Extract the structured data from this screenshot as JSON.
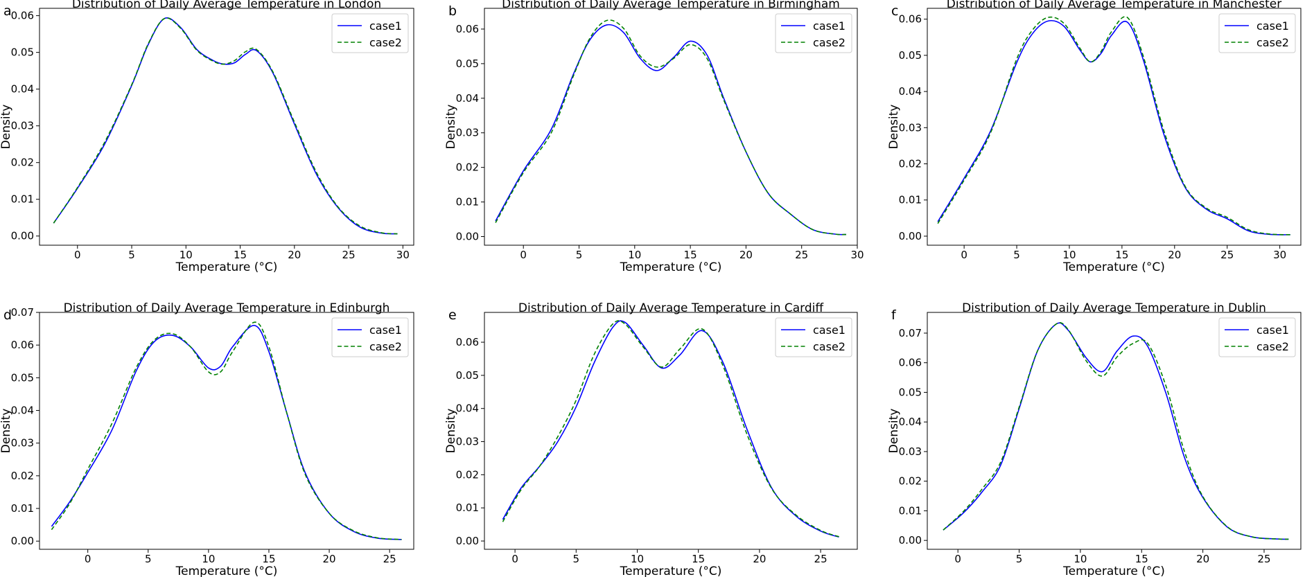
{
  "figure": {
    "legend_labels": [
      "case1",
      "case2"
    ],
    "series_colors": {
      "case1": "#0000ff",
      "case2": "#008000"
    }
  },
  "chart_data": [
    {
      "type": "line",
      "panel_label": "a",
      "title": "Distribution of Daily Average Temperature in London",
      "xlabel": "Temperature (°C)",
      "ylabel": "Density",
      "xlim": [
        -3.5,
        31
      ],
      "ylim": [
        -0.0025,
        0.062
      ],
      "xticks": [
        0,
        5,
        10,
        15,
        20,
        25,
        30
      ],
      "xtick_labels": [
        "0",
        "5",
        "10",
        "15",
        "20",
        "25",
        "30"
      ],
      "yticks": [
        0,
        0.01,
        0.02,
        0.03,
        0.04,
        0.05,
        0.06
      ],
      "ytick_labels": [
        "0.00",
        "0.01",
        "0.02",
        "0.03",
        "0.04",
        "0.05",
        "0.06"
      ],
      "legend_position": "top-right",
      "series": [
        {
          "name": "case1",
          "style": "solid",
          "x": [
            -2.2,
            0,
            2.5,
            5,
            6.5,
            8,
            9.5,
            11,
            12.5,
            13.5,
            14.5,
            15.5,
            16.5,
            18,
            20,
            22,
            24,
            26,
            28,
            29.5
          ],
          "y": [
            0.0035,
            0.013,
            0.025,
            0.041,
            0.052,
            0.0592,
            0.0568,
            0.0508,
            0.0478,
            0.0468,
            0.0472,
            0.0495,
            0.0505,
            0.0445,
            0.0305,
            0.017,
            0.0078,
            0.0025,
            0.0008,
            0.0006
          ]
        },
        {
          "name": "case2",
          "style": "dashed",
          "x": [
            -2.2,
            0,
            2.5,
            5,
            6.5,
            8,
            9.5,
            11,
            12.5,
            13.5,
            14.5,
            15.5,
            16.5,
            18,
            20,
            22,
            24,
            26,
            28,
            29.5
          ],
          "y": [
            0.0035,
            0.0132,
            0.0255,
            0.0412,
            0.0522,
            0.0592,
            0.0566,
            0.0506,
            0.0476,
            0.0468,
            0.0478,
            0.0502,
            0.0508,
            0.0448,
            0.031,
            0.0175,
            0.008,
            0.0028,
            0.0009,
            0.0006
          ]
        }
      ]
    },
    {
      "type": "line",
      "panel_label": "b",
      "title": "Distribution of Daily Average Temperature in Birmingham",
      "xlabel": "Temperature (°C)",
      "ylabel": "Density",
      "xlim": [
        -3.5,
        30
      ],
      "ylim": [
        -0.0025,
        0.066
      ],
      "xticks": [
        0,
        5,
        10,
        15,
        20,
        25,
        30
      ],
      "xtick_labels": [
        "0",
        "5",
        "10",
        "15",
        "20",
        "25",
        "30"
      ],
      "yticks": [
        0,
        0.01,
        0.02,
        0.03,
        0.04,
        0.05,
        0.06
      ],
      "ytick_labels": [
        "0.00",
        "0.01",
        "0.02",
        "0.03",
        "0.04",
        "0.05",
        "0.06"
      ],
      "legend_position": "top-right",
      "series": [
        {
          "name": "case1",
          "style": "solid",
          "x": [
            -2.5,
            0,
            2.5,
            4.5,
            6,
            7.5,
            9,
            10.5,
            12,
            13.5,
            15,
            16.5,
            18,
            20,
            22,
            24,
            26,
            28,
            29
          ],
          "y": [
            0.0045,
            0.019,
            0.031,
            0.047,
            0.057,
            0.0612,
            0.059,
            0.0515,
            0.048,
            0.0518,
            0.0565,
            0.0525,
            0.04,
            0.0245,
            0.0125,
            0.0065,
            0.002,
            0.0007,
            0.0006
          ]
        },
        {
          "name": "case2",
          "style": "dashed",
          "x": [
            -2.5,
            0,
            2.5,
            4.5,
            6,
            7.5,
            9,
            10.5,
            12,
            13.5,
            15,
            16.5,
            18,
            20,
            22,
            24,
            26,
            28,
            29
          ],
          "y": [
            0.004,
            0.0185,
            0.03,
            0.0465,
            0.0575,
            0.0625,
            0.0602,
            0.0522,
            0.049,
            0.0515,
            0.0555,
            0.0515,
            0.0395,
            0.0245,
            0.0125,
            0.0065,
            0.002,
            0.0007,
            0.0006
          ]
        }
      ]
    },
    {
      "type": "line",
      "panel_label": "c",
      "title": "Distribution of Daily Average Temperature in Manchester",
      "xlabel": "Temperature (°C)",
      "ylabel": "Density",
      "xlim": [
        -3.5,
        32
      ],
      "ylim": [
        -0.0025,
        0.063
      ],
      "xticks": [
        0,
        5,
        10,
        15,
        20,
        25,
        30
      ],
      "xtick_labels": [
        "0",
        "5",
        "10",
        "15",
        "20",
        "25",
        "30"
      ],
      "yticks": [
        0,
        0.01,
        0.02,
        0.03,
        0.04,
        0.05,
        0.06
      ],
      "ytick_labels": [
        "0.00",
        "0.01",
        "0.02",
        "0.03",
        "0.04",
        "0.05",
        "0.06"
      ],
      "legend_position": "top-right",
      "series": [
        {
          "name": "case1",
          "style": "solid",
          "x": [
            -2.5,
            0,
            2.5,
            5,
            6.5,
            8,
            9.5,
            11,
            12,
            13,
            14,
            15.5,
            17,
            19,
            21,
            23,
            25,
            27,
            29,
            31
          ],
          "y": [
            0.004,
            0.016,
            0.029,
            0.048,
            0.056,
            0.0595,
            0.058,
            0.0515,
            0.0482,
            0.0505,
            0.0555,
            0.0592,
            0.049,
            0.028,
            0.0135,
            0.0075,
            0.0048,
            0.0015,
            0.0005,
            0.0004
          ]
        },
        {
          "name": "case2",
          "style": "dashed",
          "x": [
            -2.5,
            0,
            2.5,
            5,
            6.5,
            8,
            9.5,
            11,
            12,
            13,
            14,
            15.5,
            17,
            19,
            21,
            23,
            25,
            27,
            29,
            31
          ],
          "y": [
            0.0035,
            0.0155,
            0.0285,
            0.049,
            0.057,
            0.0605,
            0.0588,
            0.052,
            0.0482,
            0.051,
            0.0565,
            0.0605,
            0.05,
            0.029,
            0.0138,
            0.0078,
            0.0052,
            0.0018,
            0.0006,
            0.0004
          ]
        }
      ]
    },
    {
      "type": "line",
      "panel_label": "d",
      "title": "Distribution of Daily Average Temperature in Edinburgh",
      "xlabel": "Temperature (°C)",
      "ylabel": "Density",
      "xlim": [
        -4,
        27
      ],
      "ylim": [
        -0.0025,
        0.07
      ],
      "xticks": [
        0,
        5,
        10,
        15,
        20,
        25
      ],
      "xtick_labels": [
        "0",
        "5",
        "10",
        "15",
        "20",
        "25"
      ],
      "yticks": [
        0,
        0.01,
        0.02,
        0.03,
        0.04,
        0.05,
        0.06,
        0.07
      ],
      "ytick_labels": [
        "0.00",
        "0.01",
        "0.02",
        "0.03",
        "0.04",
        "0.05",
        "0.06",
        "0.07"
      ],
      "legend_position": "top-right",
      "series": [
        {
          "name": "case1",
          "style": "solid",
          "x": [
            -3,
            -1.5,
            0,
            2,
            4,
            5.5,
            7,
            8.5,
            10,
            11,
            12,
            13.8,
            15,
            16.5,
            18,
            20,
            22,
            24,
            26
          ],
          "y": [
            0.0045,
            0.012,
            0.021,
            0.034,
            0.052,
            0.061,
            0.063,
            0.0595,
            0.053,
            0.0535,
            0.0595,
            0.066,
            0.058,
            0.039,
            0.021,
            0.0085,
            0.003,
            0.0009,
            0.0005
          ]
        },
        {
          "name": "case2",
          "style": "dashed",
          "x": [
            -3,
            -1.5,
            0,
            2,
            4,
            5.5,
            7,
            8.5,
            10,
            11,
            12,
            13.8,
            15,
            16.5,
            18,
            20,
            22,
            24,
            26
          ],
          "y": [
            0.0035,
            0.0115,
            0.022,
            0.036,
            0.053,
            0.0615,
            0.0635,
            0.0595,
            0.0518,
            0.0518,
            0.058,
            0.067,
            0.0595,
            0.039,
            0.0205,
            0.0085,
            0.0032,
            0.001,
            0.0005
          ]
        }
      ]
    },
    {
      "type": "line",
      "panel_label": "e",
      "title": "Distribution of Daily Average Temperature in Cardiff",
      "xlabel": "Temperature (°C)",
      "ylabel": "Density",
      "xlim": [
        -2.5,
        28
      ],
      "ylim": [
        -0.0025,
        0.069
      ],
      "xticks": [
        0,
        5,
        10,
        15,
        20,
        25
      ],
      "xtick_labels": [
        "0",
        "5",
        "10",
        "15",
        "20",
        "25"
      ],
      "yticks": [
        0,
        0.01,
        0.02,
        0.03,
        0.04,
        0.05,
        0.06
      ],
      "ytick_labels": [
        "0.00",
        "0.01",
        "0.02",
        "0.03",
        "0.04",
        "0.05",
        "0.06"
      ],
      "legend_position": "top-right",
      "series": [
        {
          "name": "case1",
          "style": "solid",
          "x": [
            -1,
            0.5,
            2,
            3.5,
            5,
            6.5,
            8,
            9,
            10.5,
            12,
            13.5,
            15.3,
            17,
            19,
            21,
            23,
            25,
            26.5
          ],
          "y": [
            0.0065,
            0.016,
            0.0225,
            0.03,
            0.0405,
            0.054,
            0.0645,
            0.066,
            0.059,
            0.0522,
            0.0562,
            0.0635,
            0.054,
            0.0335,
            0.016,
            0.0075,
            0.003,
            0.0012
          ]
        },
        {
          "name": "case2",
          "style": "dashed",
          "x": [
            -1,
            0.5,
            2,
            3.5,
            5,
            6.5,
            8,
            9,
            10.5,
            12,
            13.5,
            15.3,
            17,
            19,
            21,
            23,
            25,
            26.5
          ],
          "y": [
            0.0058,
            0.0155,
            0.0225,
            0.0315,
            0.0425,
            0.0565,
            0.0655,
            0.0655,
            0.0585,
            0.0525,
            0.058,
            0.064,
            0.053,
            0.032,
            0.0158,
            0.0078,
            0.0032,
            0.0013
          ]
        }
      ]
    },
    {
      "type": "line",
      "panel_label": "f",
      "title": "Distribution of Daily Average Temperature in Dublin",
      "xlabel": "Temperature (°C)",
      "ylabel": "Density",
      "xlim": [
        -2.5,
        28
      ],
      "ylim": [
        -0.003,
        0.077
      ],
      "xticks": [
        0,
        5,
        10,
        15,
        20,
        25
      ],
      "xtick_labels": [
        "0",
        "5",
        "10",
        "15",
        "20",
        "25"
      ],
      "yticks": [
        0,
        0.01,
        0.02,
        0.03,
        0.04,
        0.05,
        0.06,
        0.07
      ],
      "ytick_labels": [
        "0.00",
        "0.01",
        "0.02",
        "0.03",
        "0.04",
        "0.05",
        "0.06",
        "0.07"
      ],
      "legend_position": "top-right",
      "series": [
        {
          "name": "case1",
          "style": "solid",
          "x": [
            -1.2,
            0.5,
            2,
            3.5,
            5,
            6.5,
            8,
            9,
            10.5,
            11.8,
            13,
            14.3,
            15.5,
            17,
            18.5,
            20,
            22,
            24,
            26,
            27
          ],
          "y": [
            0.0035,
            0.0095,
            0.0165,
            0.0255,
            0.0445,
            0.064,
            0.073,
            0.071,
            0.0615,
            0.057,
            0.064,
            0.069,
            0.0655,
            0.0495,
            0.028,
            0.0145,
            0.0045,
            0.0012,
            0.0005,
            0.0004
          ]
        },
        {
          "name": "case2",
          "style": "dashed",
          "x": [
            -1.2,
            0.5,
            2,
            3.5,
            5,
            6.5,
            8,
            9,
            10.5,
            11.8,
            13,
            14.3,
            15.5,
            17,
            18.5,
            20,
            22,
            24,
            26,
            27
          ],
          "y": [
            0.0035,
            0.01,
            0.0175,
            0.0265,
            0.045,
            0.064,
            0.073,
            0.0712,
            0.0605,
            0.0555,
            0.062,
            0.0665,
            0.0665,
            0.052,
            0.03,
            0.0148,
            0.0046,
            0.0012,
            0.0005,
            0.0004
          ]
        }
      ]
    }
  ]
}
